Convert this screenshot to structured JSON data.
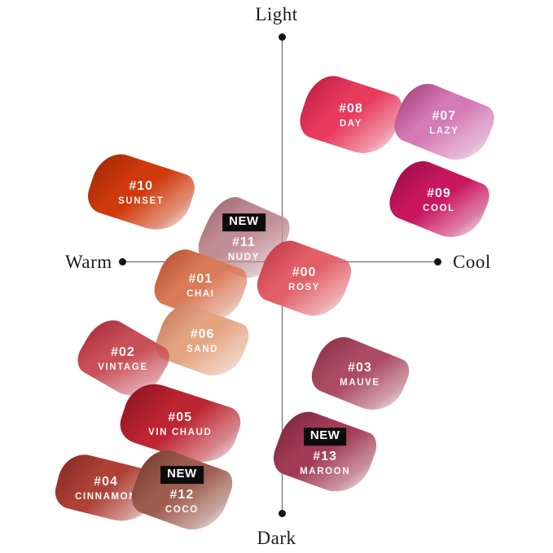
{
  "axes": {
    "top": "Light",
    "bottom": "Dark",
    "left": "Warm",
    "right": "Cool"
  },
  "badge_new": "NEW",
  "swatches": [
    {
      "number": "#00",
      "name": "ROSY",
      "color": "#e25f68",
      "edge": "#c03848",
      "new": false
    },
    {
      "number": "#01",
      "name": "CHAI",
      "color": "#d97a58",
      "edge": "#b5502f",
      "new": false
    },
    {
      "number": "#02",
      "name": "VINTAGE",
      "color": "#c84f58",
      "edge": "#a52e3a",
      "new": false
    },
    {
      "number": "#03",
      "name": "MAUVE",
      "color": "#ab4c63",
      "edge": "#8a3047",
      "new": false
    },
    {
      "number": "#04",
      "name": "CINNAMON",
      "color": "#ad4136",
      "edge": "#832a20",
      "new": false
    },
    {
      "number": "#05",
      "name": "VIN CHAUD",
      "color": "#bc2531",
      "edge": "#8e1120",
      "new": false
    },
    {
      "number": "#06",
      "name": "SAND",
      "color": "#e4a482",
      "edge": "#c67c5a",
      "new": false
    },
    {
      "number": "#07",
      "name": "LAZY",
      "color": "#d47ab4",
      "edge": "#a43e7d",
      "new": false
    },
    {
      "number": "#08",
      "name": "DAY",
      "color": "#e73a5c",
      "edge": "#bd1c41",
      "new": false
    },
    {
      "number": "#09",
      "name": "COOL",
      "color": "#c8175f",
      "edge": "#990d45",
      "new": false
    },
    {
      "number": "#10",
      "name": "SUNSET",
      "color": "#ce3a0d",
      "edge": "#a12706",
      "new": false
    },
    {
      "number": "#11",
      "name": "NUDY",
      "color": "#c18d94",
      "edge": "#9f6a71",
      "new": true
    },
    {
      "number": "#12",
      "name": "COCO",
      "color": "#9d5c4e",
      "edge": "#743a2e",
      "new": true
    },
    {
      "number": "#13",
      "name": "MAROON",
      "color": "#a23c55",
      "edge": "#7c2540",
      "new": true
    }
  ]
}
